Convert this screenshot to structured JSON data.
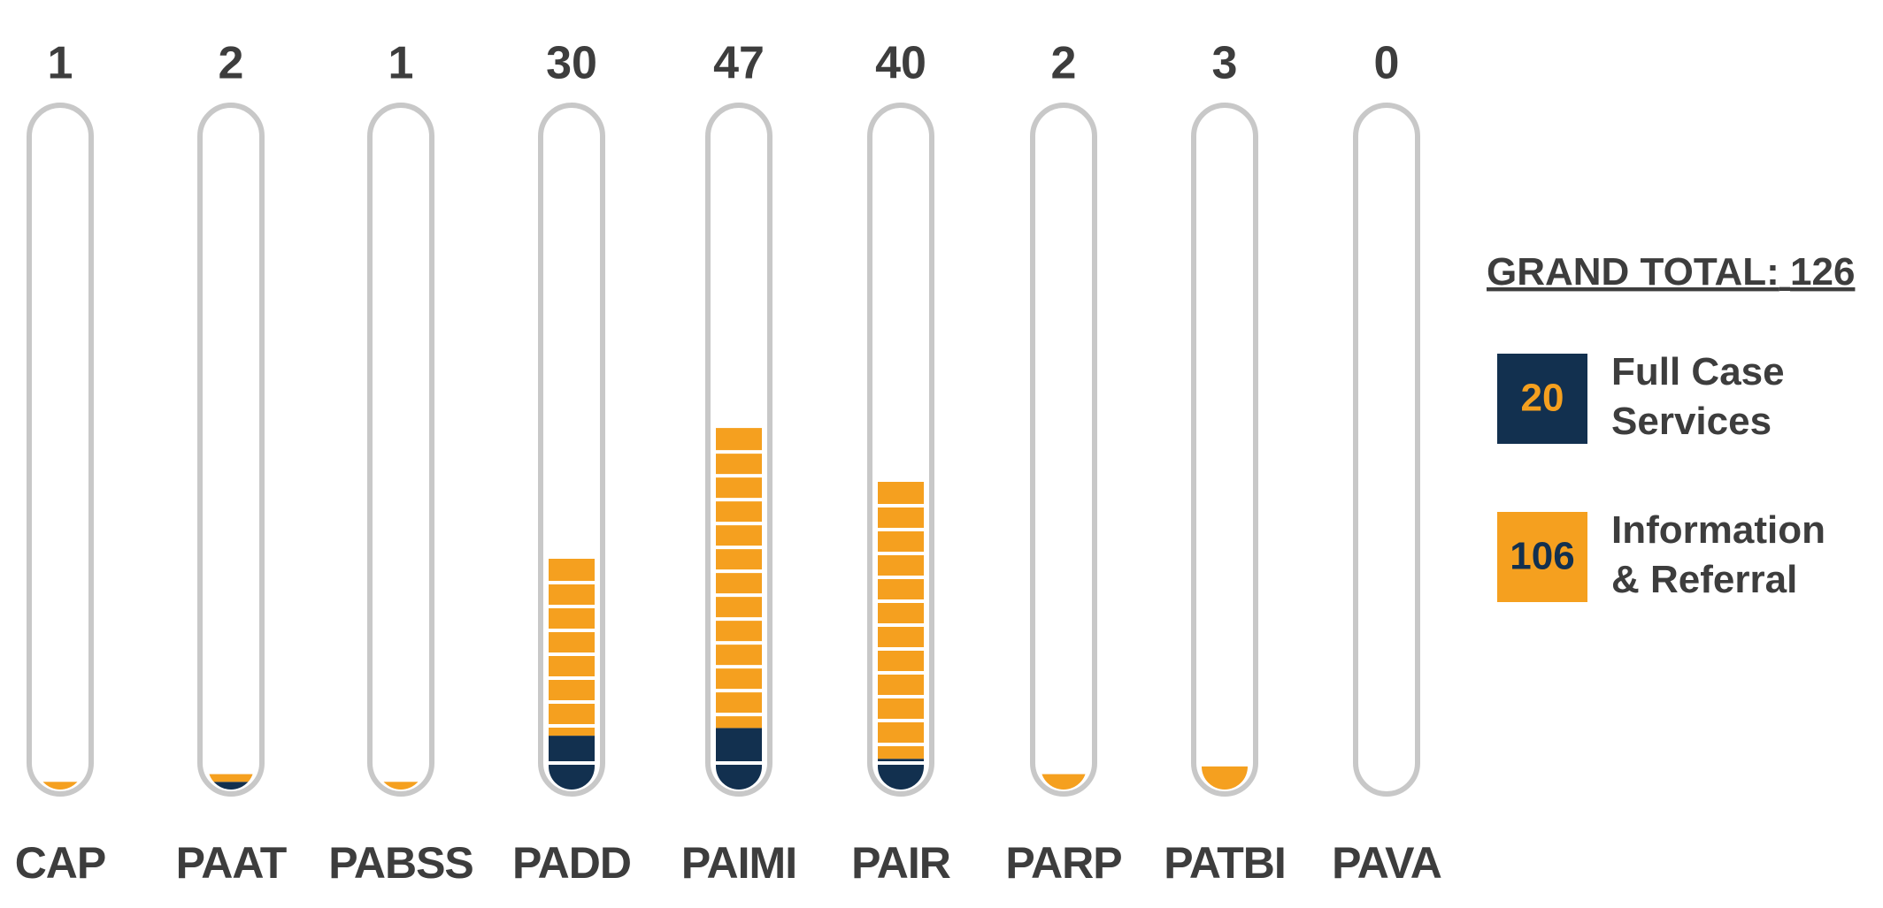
{
  "chart_data": {
    "type": "tube",
    "categories": [
      "CAP",
      "PAAT",
      "PABSS",
      "PADD",
      "PAIMI",
      "PAIR",
      "PARP",
      "PATBI",
      "PAVA"
    ],
    "totals": [
      1,
      2,
      1,
      30,
      47,
      40,
      2,
      3,
      0
    ],
    "series": [
      {
        "name": "Full Case Services",
        "color": "#12304f",
        "total": 20,
        "values": [
          0,
          1,
          0,
          7,
          8,
          4,
          0,
          0,
          0
        ]
      },
      {
        "name": "Information & Referral",
        "color": "#f5a01f",
        "total": 106,
        "values": [
          1,
          1,
          1,
          23,
          39,
          36,
          2,
          3,
          0
        ]
      }
    ],
    "grand_total_label": "GRAND TOTAL:",
    "grand_total": 126
  }
}
